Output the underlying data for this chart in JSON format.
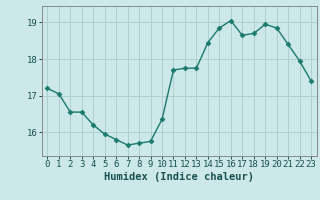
{
  "x": [
    0,
    1,
    2,
    3,
    4,
    5,
    6,
    7,
    8,
    9,
    10,
    11,
    12,
    13,
    14,
    15,
    16,
    17,
    18,
    19,
    20,
    21,
    22,
    23
  ],
  "y": [
    17.2,
    17.05,
    16.55,
    16.55,
    16.2,
    15.95,
    15.8,
    15.65,
    15.7,
    15.75,
    16.35,
    17.7,
    17.75,
    17.75,
    18.45,
    18.85,
    19.05,
    18.65,
    18.7,
    18.95,
    18.85,
    18.4,
    17.95,
    17.4
  ],
  "line_color": "#1a7a6e",
  "marker_color": "#1a7a6e",
  "bg_color": "#cce8e8",
  "grid_color": "#b0d0d0",
  "xlabel": "Humidex (Indice chaleur)",
  "ylim_min": 15.35,
  "ylim_max": 19.45,
  "yticks": [
    16,
    17,
    18,
    19
  ],
  "xticks": [
    0,
    1,
    2,
    3,
    4,
    5,
    6,
    7,
    8,
    9,
    10,
    11,
    12,
    13,
    14,
    15,
    16,
    17,
    18,
    19,
    20,
    21,
    22,
    23
  ],
  "xlabel_fontsize": 7.5,
  "tick_fontsize": 6.5,
  "line_width": 1.0,
  "marker_size": 2.5
}
